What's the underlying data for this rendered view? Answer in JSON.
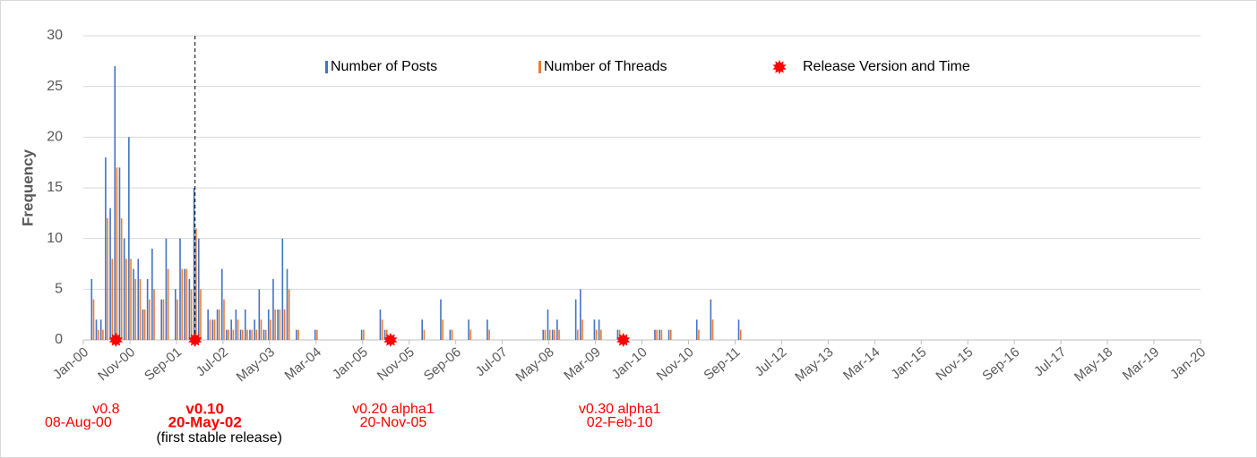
{
  "chart_data": {
    "type": "bar",
    "y_label": "Frequency",
    "ylim": [
      0,
      30
    ],
    "yticks": [
      0,
      5,
      10,
      15,
      20,
      25,
      30
    ],
    "grid": true,
    "categories": [
      "Jan-00",
      null,
      null,
      null,
      null,
      null,
      null,
      null,
      null,
      null,
      "Nov-00",
      null,
      null,
      null,
      null,
      null,
      null,
      null,
      null,
      null,
      "Sep-01",
      null,
      null,
      null,
      null,
      null,
      null,
      null,
      null,
      null,
      "Jul-02",
      null,
      null,
      null,
      null,
      null,
      null,
      null,
      null,
      null,
      "May-03",
      null,
      null,
      null,
      null,
      null,
      null,
      null,
      null,
      null,
      "Mar-04",
      null,
      null,
      null,
      null,
      null,
      null,
      null,
      null,
      null,
      "Jan-05",
      null,
      null,
      null,
      null,
      null,
      null,
      null,
      null,
      null,
      "Nov-05",
      null,
      null,
      null,
      null,
      null,
      null,
      null,
      null,
      null,
      "Sep-06",
      null,
      null,
      null,
      null,
      null,
      null,
      null,
      null,
      null,
      "Jul-07",
      null,
      null,
      null,
      null,
      null,
      null,
      null,
      null,
      null,
      "May-08",
      null,
      null,
      null,
      null,
      null,
      null,
      null,
      null,
      null,
      "Mar-09",
      null,
      null,
      null,
      null,
      null,
      null,
      null,
      null,
      null,
      "Jan-10",
      null,
      null,
      null,
      null,
      null,
      null,
      null,
      null,
      null,
      "Nov-10",
      null,
      null,
      null,
      null,
      null,
      null,
      null,
      null,
      null,
      "Sep-11",
      null,
      null,
      null,
      null,
      null,
      null,
      null,
      null,
      null,
      "Jul-12",
      null,
      null,
      null,
      null,
      null,
      null,
      null,
      null,
      null,
      "May-13",
      null,
      null,
      null,
      null,
      null,
      null,
      null,
      null,
      null,
      "Mar-14",
      null,
      null,
      null,
      null,
      null,
      null,
      null,
      null,
      null,
      "Jan-15",
      null,
      null,
      null,
      null,
      null,
      null,
      null,
      null,
      null,
      "Nov-15",
      null,
      null,
      null,
      null,
      null,
      null,
      null,
      null,
      null,
      "Sep-16",
      null,
      null,
      null,
      null,
      null,
      null,
      null,
      null,
      null,
      "Jul-17",
      null,
      null,
      null,
      null,
      null,
      null,
      null,
      null,
      null,
      "May-18",
      null,
      null,
      null,
      null,
      null,
      null,
      null,
      null,
      null,
      "Mar-19",
      null,
      null,
      null,
      null,
      null,
      null,
      null,
      null,
      null,
      "Jan-20"
    ],
    "series": [
      {
        "name": "Number of Posts",
        "color": "#4472c4",
        "values": [
          0,
          0,
          6,
          2,
          2,
          18,
          13,
          27,
          17,
          10,
          20,
          7,
          8,
          3,
          6,
          9,
          0,
          4,
          10,
          0,
          5,
          10,
          7,
          6,
          15,
          10,
          0,
          3,
          2,
          3,
          7,
          1,
          2,
          3,
          1,
          3,
          1,
          2,
          5,
          1,
          3,
          6,
          3,
          10,
          7,
          0,
          1,
          0,
          0,
          0,
          1,
          0,
          0,
          0,
          0,
          0,
          0,
          0,
          0,
          0,
          1,
          0,
          0,
          0,
          3,
          1,
          0,
          0,
          0,
          0,
          0,
          0,
          0,
          2,
          0,
          0,
          0,
          4,
          0,
          1,
          0,
          0,
          0,
          2,
          0,
          0,
          0,
          2,
          0,
          0,
          0,
          0,
          0,
          0,
          0,
          0,
          0,
          0,
          0,
          1,
          3,
          1,
          2,
          0,
          0,
          0,
          4,
          5,
          0,
          0,
          2,
          2,
          0,
          0,
          0,
          1,
          0,
          0,
          0,
          0,
          0,
          0,
          0,
          1,
          1,
          0,
          1,
          0,
          0,
          0,
          0,
          0,
          2,
          0,
          0,
          4,
          0,
          0,
          0,
          0,
          0,
          2,
          0,
          0,
          0,
          0,
          0,
          0,
          0,
          0,
          0,
          0,
          0,
          0,
          0,
          0,
          0,
          0,
          0,
          0,
          0,
          0,
          0,
          0,
          0,
          0,
          0,
          0,
          0,
          0,
          0,
          0,
          0,
          0,
          0,
          0,
          0,
          0,
          0,
          0,
          0,
          0,
          0,
          0,
          0,
          0,
          0,
          0,
          0,
          0,
          0,
          0,
          0,
          0,
          0,
          0,
          0,
          0,
          0,
          0,
          0,
          0,
          0,
          0,
          0,
          0,
          0,
          0,
          0,
          0,
          0,
          0,
          0,
          0,
          0,
          0,
          0,
          0,
          0,
          0,
          0,
          0,
          0,
          0,
          0,
          0,
          0,
          0,
          0,
          0,
          0,
          0,
          0,
          0,
          0,
          0,
          0,
          0,
          0,
          0,
          0
        ]
      },
      {
        "name": "Number of Threads",
        "color": "#ed7d31",
        "values": [
          0,
          0,
          4,
          1,
          1,
          12,
          8,
          17,
          12,
          8,
          8,
          6,
          6,
          3,
          4,
          5,
          0,
          4,
          7,
          0,
          4,
          7,
          7,
          5,
          11,
          5,
          0,
          2,
          2,
          3,
          4,
          1,
          1,
          2,
          1,
          1,
          1,
          1,
          2,
          1,
          2,
          3,
          3,
          3,
          5,
          0,
          1,
          0,
          0,
          0,
          1,
          0,
          0,
          0,
          0,
          0,
          0,
          0,
          0,
          0,
          1,
          0,
          0,
          0,
          2,
          1,
          0,
          0,
          0,
          0,
          0,
          0,
          0,
          1,
          0,
          0,
          0,
          2,
          0,
          1,
          0,
          0,
          0,
          1,
          0,
          0,
          0,
          1,
          0,
          0,
          0,
          0,
          0,
          0,
          0,
          0,
          0,
          0,
          0,
          1,
          1,
          1,
          1,
          0,
          0,
          0,
          1,
          2,
          0,
          0,
          1,
          1,
          0,
          0,
          0,
          1,
          0,
          0,
          0,
          0,
          0,
          0,
          0,
          1,
          1,
          0,
          1,
          0,
          0,
          0,
          0,
          0,
          1,
          0,
          0,
          2,
          0,
          0,
          0,
          0,
          0,
          1,
          0,
          0,
          0,
          0,
          0,
          0,
          0,
          0,
          0,
          0,
          0,
          0,
          0,
          0,
          0,
          0,
          0,
          0,
          0,
          0,
          0,
          0,
          0,
          0,
          0,
          0,
          0,
          0,
          0,
          0,
          0,
          0,
          0,
          0,
          0,
          0,
          0,
          0,
          0,
          0,
          0,
          0,
          0,
          0,
          0,
          0,
          0,
          0,
          0,
          0,
          0,
          0,
          0,
          0,
          0,
          0,
          0,
          0,
          0,
          0,
          0,
          0,
          0,
          0,
          0,
          0,
          0,
          0,
          0,
          0,
          0,
          0,
          0,
          0,
          0,
          0,
          0,
          0,
          0,
          0,
          0,
          0,
          0,
          0,
          0,
          0,
          0,
          0,
          0,
          0,
          0,
          0,
          0,
          0,
          0,
          0,
          0,
          0,
          0
        ]
      },
      {
        "name": "Release Version and Time",
        "color": "#ff0000",
        "marker": "star",
        "values": [
          null,
          null,
          null,
          null,
          null,
          null,
          null,
          0,
          null,
          null,
          null,
          null,
          null,
          null,
          null,
          null,
          null,
          null,
          null,
          null,
          null,
          null,
          null,
          null,
          0,
          null,
          null,
          null,
          null,
          null,
          null,
          null,
          null,
          null,
          null,
          null,
          null,
          null,
          null,
          null,
          null,
          null,
          null,
          null,
          null,
          null,
          null,
          null,
          null,
          null,
          null,
          null,
          null,
          null,
          null,
          null,
          null,
          null,
          null,
          null,
          null,
          null,
          null,
          null,
          null,
          null,
          0,
          null,
          null,
          null,
          null,
          null,
          null,
          null,
          null,
          null,
          null,
          null,
          null,
          null,
          null,
          null,
          null,
          null,
          null,
          null,
          null,
          null,
          null,
          null,
          null,
          null,
          null,
          null,
          null,
          null,
          null,
          null,
          null,
          null,
          null,
          null,
          null,
          null,
          null,
          null,
          null,
          null,
          null,
          null,
          null,
          null,
          null,
          null,
          null,
          null,
          0,
          null,
          null,
          null,
          null,
          null,
          null,
          null,
          null,
          null,
          null,
          null,
          null,
          null,
          null,
          null,
          null,
          null,
          null,
          null,
          null,
          null,
          null,
          null,
          null,
          null,
          null,
          null,
          null,
          null,
          null,
          null,
          null,
          null,
          null,
          null,
          null,
          null,
          null,
          null,
          null,
          null,
          null,
          null,
          null,
          null,
          null,
          null,
          null,
          null,
          null,
          null,
          null,
          null,
          null,
          null,
          null,
          null,
          null,
          null,
          null,
          null,
          null,
          null,
          null,
          null,
          null,
          null,
          null,
          null,
          null,
          null,
          null,
          null,
          null,
          null,
          null,
          null,
          null,
          null,
          null,
          null,
          null,
          null,
          null,
          null,
          null,
          null,
          null,
          null,
          null,
          null,
          null,
          null,
          null,
          null,
          null,
          null,
          null,
          null,
          null,
          null,
          null,
          null,
          null,
          null,
          null,
          null,
          null,
          null,
          null,
          null,
          null,
          null,
          null,
          null,
          null,
          null,
          null,
          null,
          null,
          null,
          null,
          null,
          null
        ]
      }
    ],
    "annotations": [
      [
        "v0.8",
        "08-Aug-00"
      ],
      [
        "v0.10",
        "20-May-02",
        "(first stable release)"
      ],
      [
        "v0.20 alpha1",
        "20-Nov-05"
      ],
      [
        "v0.30 alpha1",
        "02-Feb-10"
      ]
    ]
  }
}
